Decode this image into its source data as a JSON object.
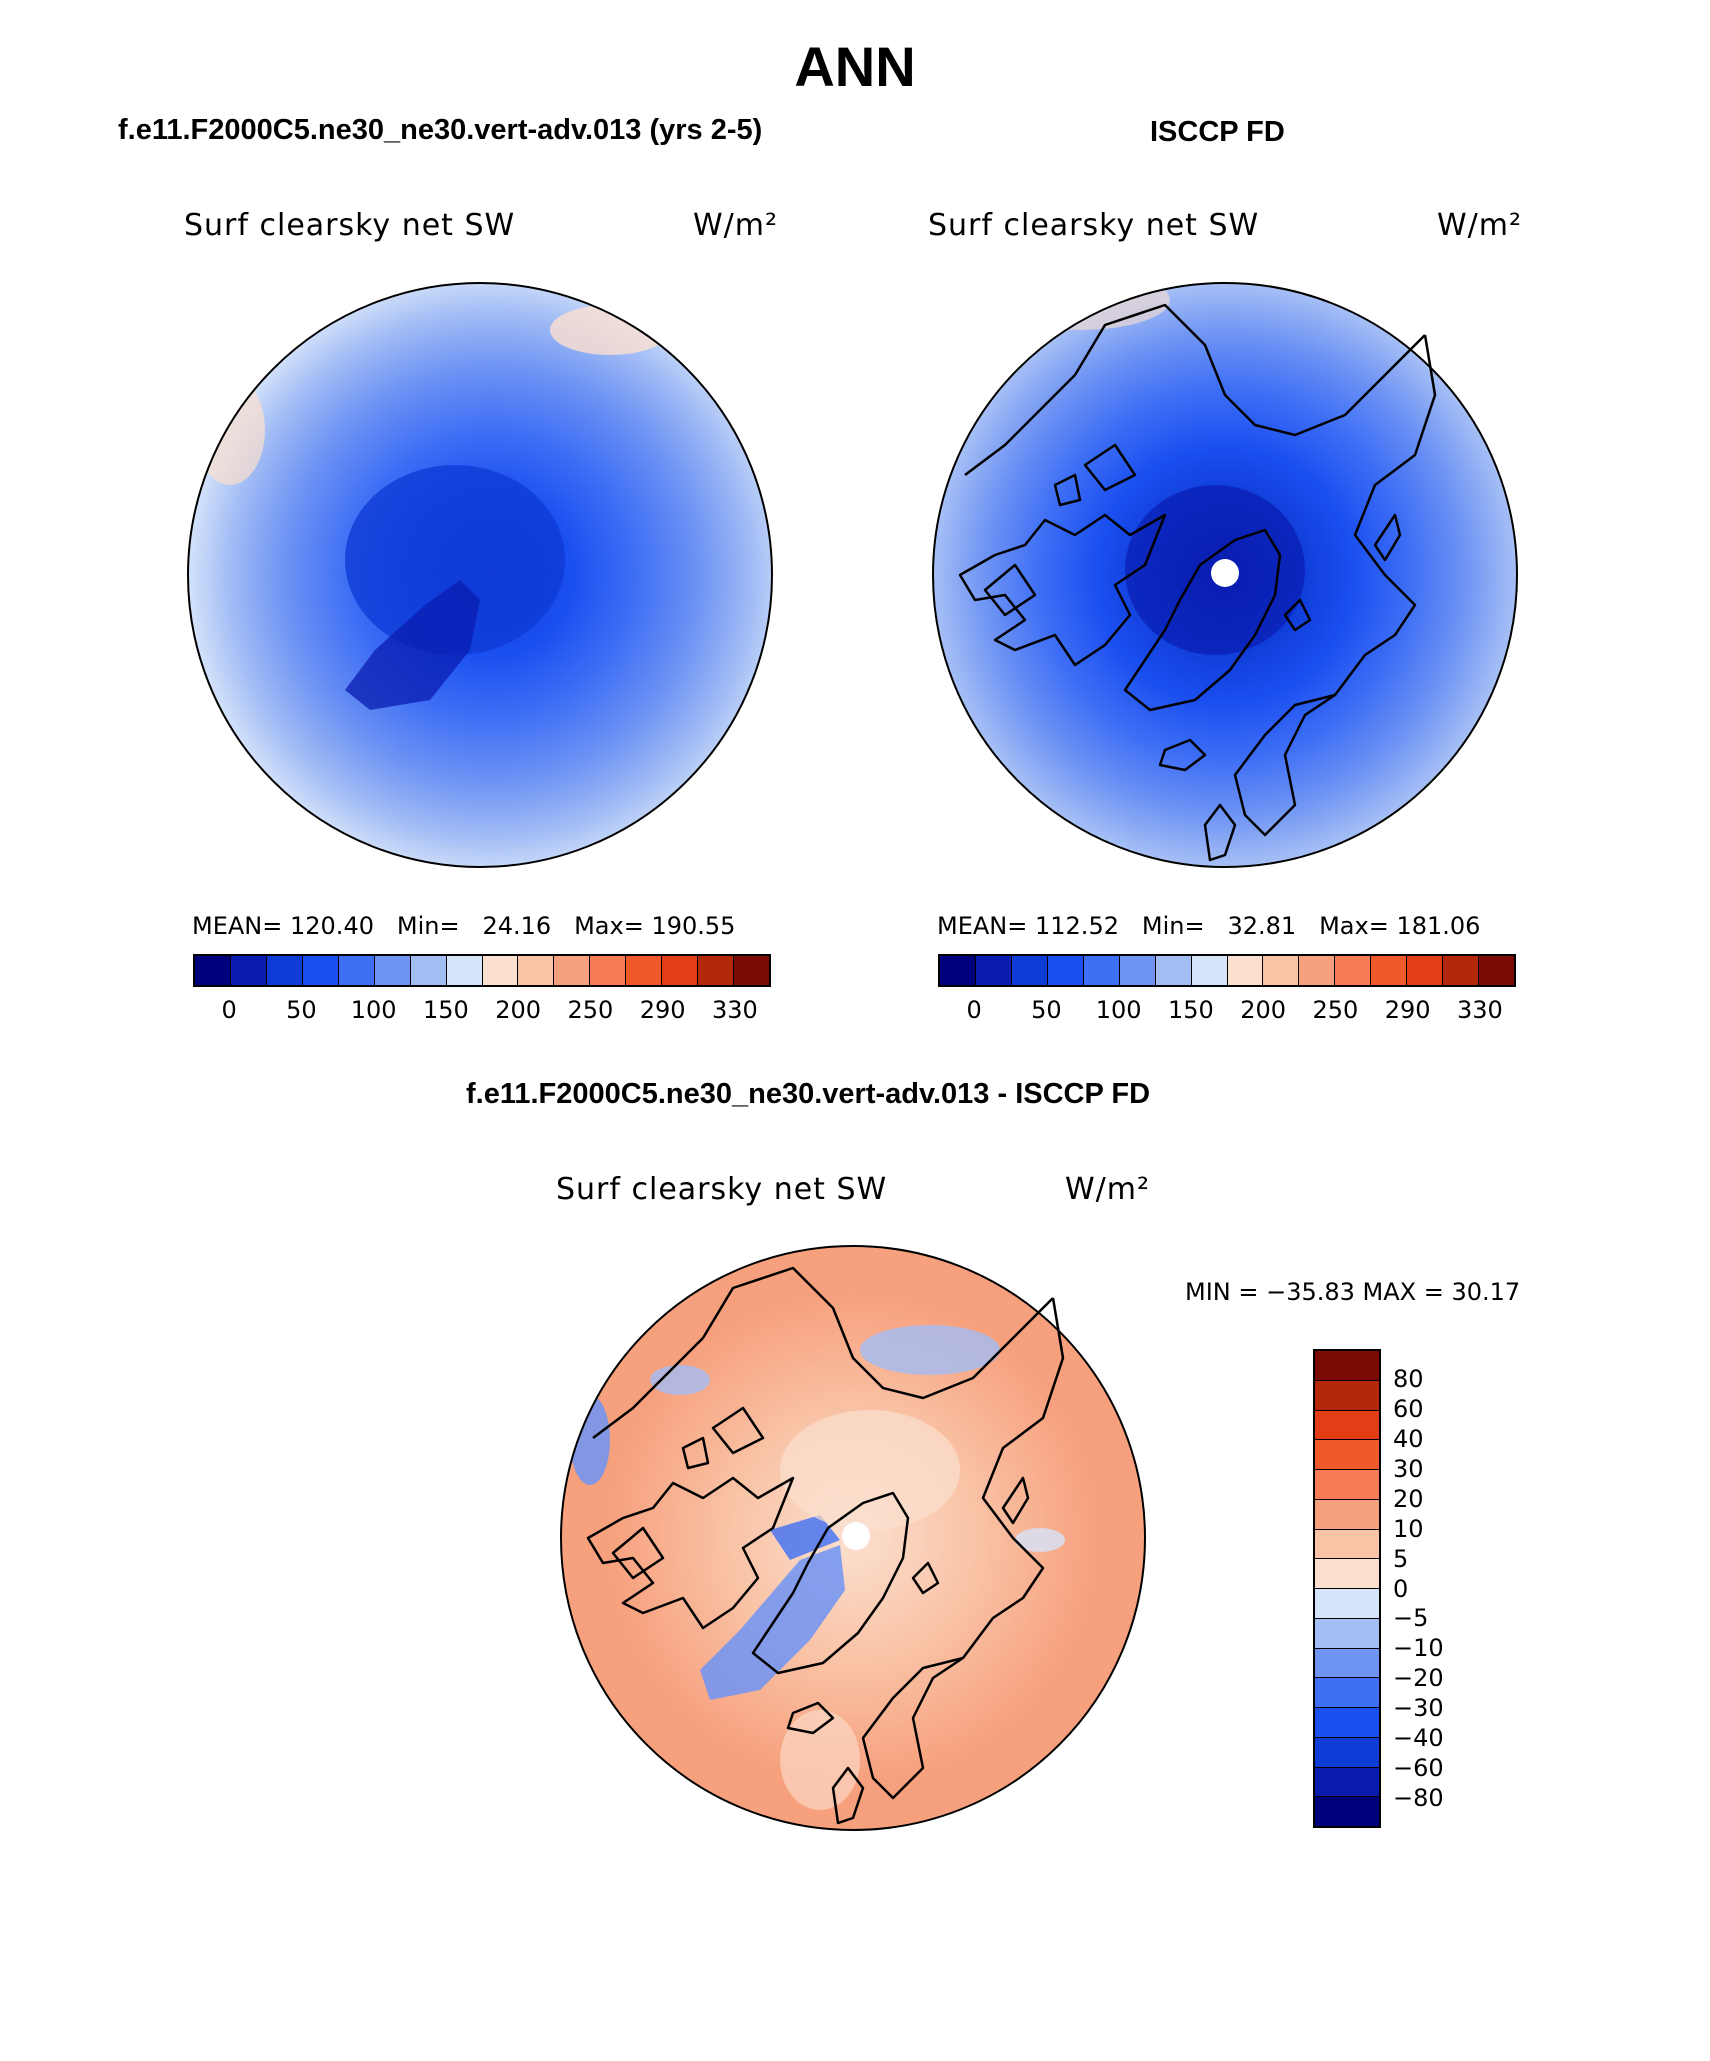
{
  "figure": {
    "title": "ANN",
    "panels": [
      {
        "case_title": "f.e11.F2000C5.ne30_ne30.vert-adv.013 (yrs 2-5)",
        "variable": "Surf clearsky net SW",
        "units": "W/m²",
        "mean_label": "MEAN=",
        "mean": "120.40",
        "min_label": "Min=",
        "min": "24.16",
        "max_label": "Max=",
        "max": "190.55"
      },
      {
        "case_title": "ISCCP FD",
        "variable": "Surf clearsky net SW",
        "units": "W/m²",
        "mean_label": "MEAN=",
        "mean": "112.52",
        "min_label": "Min=",
        "min": "32.81",
        "max_label": "Max=",
        "max": "181.06"
      }
    ],
    "diff_panel": {
      "case_title": "f.e11.F2000C5.ne30_ne30.vert-adv.013 - ISCCP FD",
      "variable": "Surf clearsky net SW",
      "units": "W/m²",
      "minmax_text": "MIN = −35.83 MAX =   30.17"
    }
  },
  "chart_data": [
    {
      "type": "heatmap",
      "projection": "north-polar-stereographic",
      "title": "Surf clearsky net SW",
      "units": "W/m2",
      "mean": 120.4,
      "min": 24.16,
      "max": 190.55,
      "colorbar_tick_labels": [
        "0",
        "50",
        "100",
        "150",
        "200",
        "250",
        "290",
        "330"
      ],
      "colorbar_colors": [
        "#00007d",
        "#0a1cb0",
        "#0f3bd6",
        "#1a4ff0",
        "#3f6ff5",
        "#6f94f4",
        "#a3bdf5",
        "#d6e4fa",
        "#fbe0cf",
        "#f9c3a6",
        "#f7a07d",
        "#f57c55",
        "#f05a2a",
        "#e23d15",
        "#b22808",
        "#7b0a05"
      ]
    },
    {
      "type": "heatmap",
      "projection": "north-polar-stereographic",
      "title": "Surf clearsky net SW",
      "units": "W/m2",
      "mean": 112.52,
      "min": 32.81,
      "max": 181.06,
      "colorbar_tick_labels": [
        "0",
        "50",
        "100",
        "150",
        "200",
        "250",
        "290",
        "330"
      ],
      "colorbar_colors": [
        "#00007d",
        "#0a1cb0",
        "#0f3bd6",
        "#1a4ff0",
        "#3f6ff5",
        "#6f94f4",
        "#a3bdf5",
        "#d6e4fa",
        "#fbe0cf",
        "#f9c3a6",
        "#f7a07d",
        "#f57c55",
        "#f05a2a",
        "#e23d15",
        "#b22808",
        "#7b0a05"
      ]
    },
    {
      "type": "heatmap",
      "projection": "north-polar-stereographic",
      "title": "Surf clearsky net SW",
      "units": "W/m2",
      "min": -35.83,
      "max": 30.17,
      "colorbar_tick_labels": [
        "80",
        "60",
        "40",
        "30",
        "20",
        "10",
        "5",
        "0",
        "−5",
        "−10",
        "−20",
        "−30",
        "−40",
        "−60",
        "−80"
      ],
      "colorbar_colors": [
        "#7b0a05",
        "#b22808",
        "#e23d15",
        "#f05a2a",
        "#f57c55",
        "#f7a07d",
        "#f9c3a6",
        "#fbe0cf",
        "#d6e4fa",
        "#a3bdf5",
        "#6f94f4",
        "#3f6ff5",
        "#1a4ff0",
        "#0f3bd6",
        "#0a1cb0",
        "#00007d"
      ]
    }
  ]
}
